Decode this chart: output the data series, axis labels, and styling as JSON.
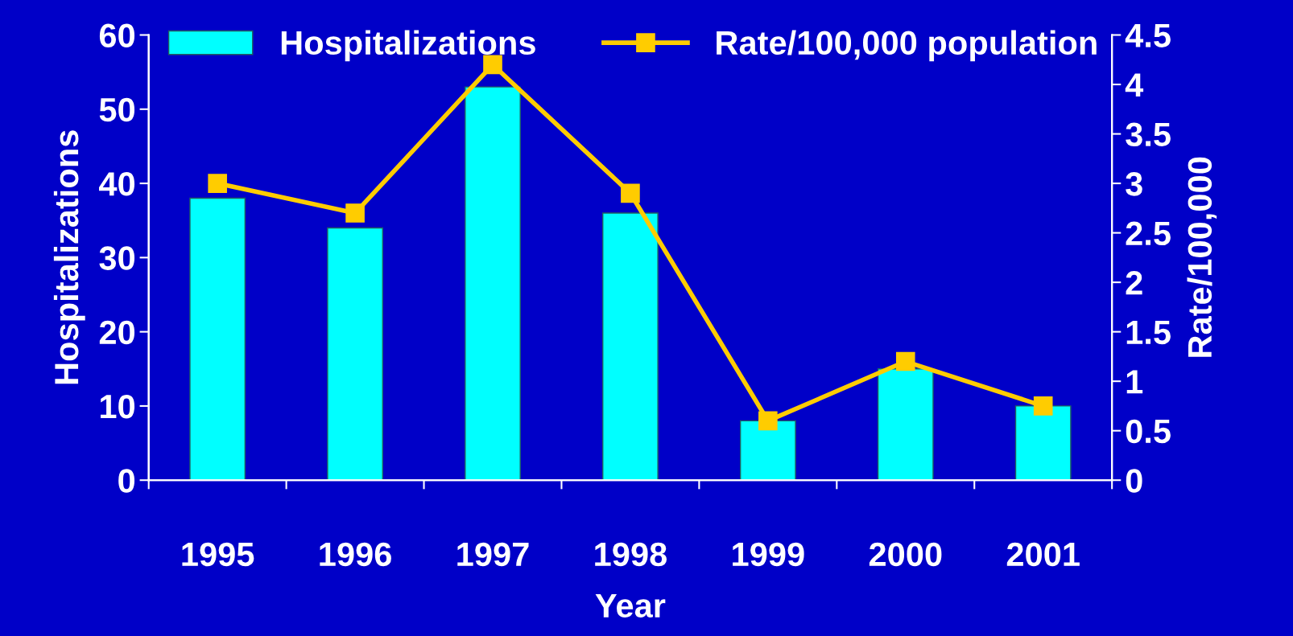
{
  "chart_data": {
    "type": "bar",
    "xlabel": "Year",
    "ylabel": "Hospitalizations",
    "y2label": "Rate/100,000",
    "categories": [
      "1995",
      "1996",
      "1997",
      "1998",
      "1999",
      "2000",
      "2001"
    ],
    "series": [
      {
        "name": "Hospitalizations",
        "color": "#00ffff",
        "values": [
          38,
          34,
          53,
          36,
          8,
          15,
          10
        ]
      },
      {
        "name": "Rate/100,000 population",
        "type": "line",
        "axis": "y2",
        "color": "#ffcc00",
        "marker": "square",
        "values": [
          3.0,
          2.7,
          4.2,
          2.9,
          0.6,
          1.2,
          0.75
        ]
      }
    ],
    "ylim": [
      0,
      60
    ],
    "yticks": [
      0,
      10,
      20,
      30,
      40,
      50,
      60
    ],
    "y2lim": [
      0,
      4.5
    ],
    "y2ticks": [
      0,
      0.5,
      1,
      1.5,
      2,
      2.5,
      3,
      3.5,
      4,
      4.5
    ],
    "legend": "top",
    "grid": false
  }
}
